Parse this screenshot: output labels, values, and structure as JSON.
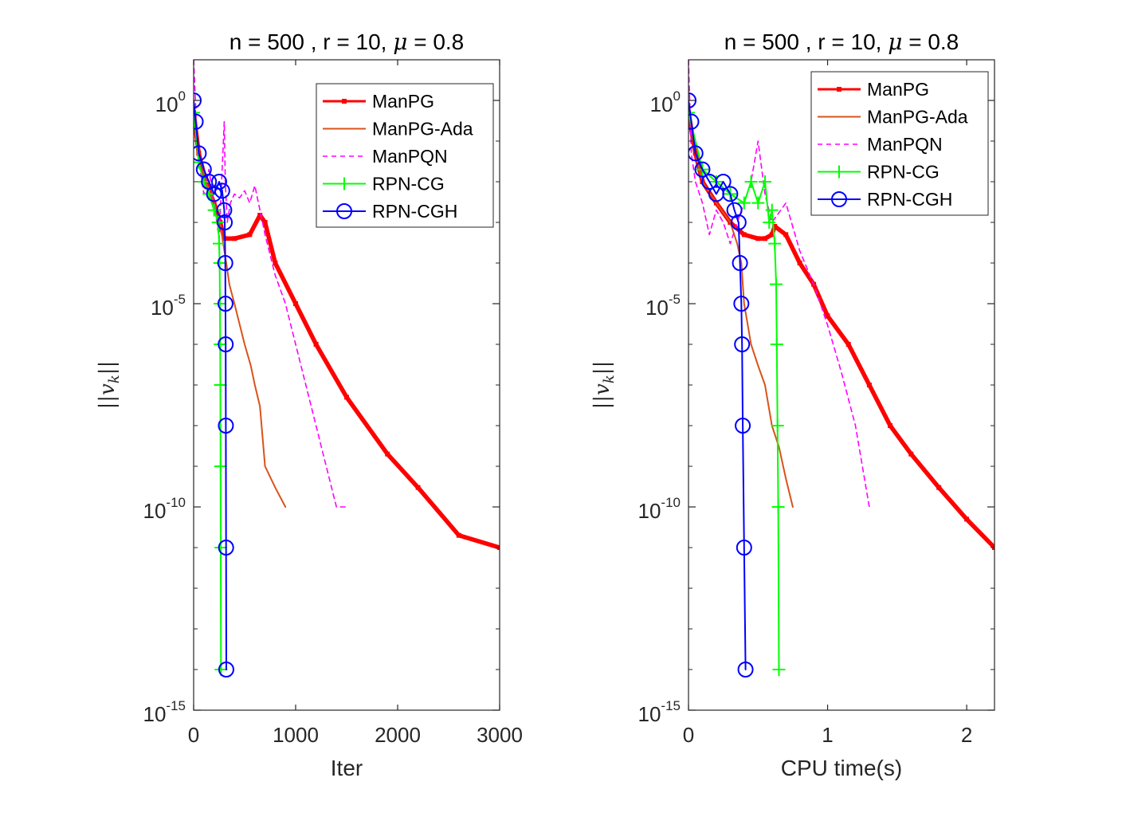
{
  "figure": {
    "common": {
      "title_prefix": "n = 500 , r = 10, ",
      "title_mu": "μ",
      "title_suffix": " = 0.8",
      "ylabel_left": "||",
      "ylabel_var": "v",
      "ylabel_sub": "k",
      "ylabel_right": "||"
    }
  },
  "chart_data": [
    {
      "type": "line",
      "xlabel": "Iter",
      "ylabel": "||v_k||",
      "yscale": "log",
      "xlim": [
        0,
        3000
      ],
      "ylim": [
        1e-15,
        10.0
      ],
      "xticks": [
        0,
        1000,
        2000,
        3000
      ],
      "xtick_labels": [
        "0",
        "1000",
        "2000",
        "3000"
      ],
      "yticks": [
        1e-15,
        1e-10,
        1e-05,
        1
      ],
      "ytick_labels": [
        {
          "base": "10",
          "exp": "-15"
        },
        {
          "base": "10",
          "exp": "-10"
        },
        {
          "base": "10",
          "exp": "-5"
        },
        {
          "base": "10",
          "exp": "0"
        }
      ],
      "legend_position": "top-right",
      "series": [
        {
          "name": "ManPG",
          "color": "#ff0000",
          "style": "thick-line-square-marker",
          "x": [
            0,
            50,
            120,
            200,
            260,
            300,
            400,
            550,
            650,
            700,
            800,
            1000,
            1200,
            1500,
            1900,
            2200,
            2600,
            3000
          ],
          "y": [
            0.5,
            0.05,
            0.01,
            0.003,
            0.001,
            0.0004,
            0.0004,
            0.0005,
            0.0015,
            0.001,
            0.0001,
            1e-05,
            1e-06,
            5e-08,
            2e-09,
            3e-10,
            2e-11,
            1e-11
          ]
        },
        {
          "name": "ManPG-Ada",
          "color": "#d95319",
          "style": "line",
          "x": [
            0,
            50,
            120,
            200,
            260,
            290,
            320,
            350,
            400,
            500,
            560,
            600,
            650,
            700,
            800,
            900
          ],
          "y": [
            0.5,
            0.05,
            0.01,
            0.003,
            0.001,
            0.0003,
            0.0001,
            3e-05,
            1e-05,
            1e-06,
            3e-07,
            1e-07,
            3e-08,
            1e-09,
            3e-10,
            1e-10
          ]
        },
        {
          "name": "ManPQN",
          "color": "#ff00ff",
          "style": "dashed",
          "x": [
            0,
            40,
            100,
            150,
            200,
            250,
            300,
            310,
            330,
            360,
            400,
            450,
            500,
            550,
            600,
            700,
            800,
            900,
            1000,
            1100,
            1200,
            1300,
            1400,
            1500
          ],
          "y": [
            10,
            0.05,
            0.005,
            0.02,
            0.003,
            0.0004,
            0.3,
            0.01,
            0.001,
            0.003,
            0.005,
            0.004,
            0.006,
            0.003,
            0.008,
            0.0005,
            5e-05,
            1e-05,
            1e-06,
            1e-07,
            1e-08,
            1e-09,
            1e-10,
            1e-10
          ]
        },
        {
          "name": "RPN-CG",
          "color": "#00ff00",
          "style": "line-plus-marker",
          "x": [
            0,
            50,
            100,
            150,
            200,
            240,
            250,
            255,
            258,
            260,
            262,
            264,
            266,
            268
          ],
          "y": [
            0.5,
            0.03,
            0.01,
            0.005,
            0.002,
            0.001,
            0.0003,
            0.0001,
            1e-05,
            1e-06,
            1e-07,
            1e-09,
            1e-11,
            1e-14
          ]
        },
        {
          "name": "RPN-CGH",
          "color": "#0000ff",
          "style": "line-circle-marker",
          "x": [
            0,
            20,
            50,
            100,
            150,
            200,
            250,
            280,
            300,
            305,
            310,
            312,
            314,
            316,
            318,
            320
          ],
          "y": [
            1,
            0.3,
            0.05,
            0.02,
            0.01,
            0.005,
            0.01,
            0.006,
            0.002,
            0.001,
            0.0001,
            1e-05,
            1e-06,
            1e-08,
            1e-11,
            1e-14
          ]
        }
      ]
    },
    {
      "type": "line",
      "xlabel": "CPU time(s)",
      "ylabel": "||v_k||",
      "yscale": "log",
      "xlim": [
        0,
        2.2
      ],
      "ylim": [
        1e-15,
        10.0
      ],
      "xticks": [
        0,
        1,
        2
      ],
      "xtick_labels": [
        "0",
        "1",
        "2"
      ],
      "yticks": [
        1e-15,
        1e-10,
        1e-05,
        1
      ],
      "ytick_labels": [
        {
          "base": "10",
          "exp": "-15"
        },
        {
          "base": "10",
          "exp": "-10"
        },
        {
          "base": "10",
          "exp": "-5"
        },
        {
          "base": "10",
          "exp": "0"
        }
      ],
      "legend_position": "top-right",
      "series": [
        {
          "name": "ManPG",
          "color": "#ff0000",
          "style": "thick-line-square-marker",
          "x": [
            0,
            0.05,
            0.1,
            0.2,
            0.3,
            0.4,
            0.5,
            0.55,
            0.6,
            0.62,
            0.7,
            0.8,
            0.9,
            1.0,
            1.15,
            1.3,
            1.45,
            1.6,
            1.8,
            2.0,
            2.2
          ],
          "y": [
            0.5,
            0.05,
            0.01,
            0.003,
            0.001,
            0.0005,
            0.0004,
            0.0004,
            0.0005,
            0.0008,
            0.0005,
            0.0001,
            3e-05,
            5e-06,
            1e-06,
            1e-07,
            1e-08,
            2e-09,
            3e-10,
            5e-11,
            1e-11
          ]
        },
        {
          "name": "ManPG-Ada",
          "color": "#d95319",
          "style": "line",
          "x": [
            0,
            0.05,
            0.1,
            0.2,
            0.3,
            0.35,
            0.38,
            0.4,
            0.45,
            0.5,
            0.55,
            0.6,
            0.65,
            0.7,
            0.75
          ],
          "y": [
            0.5,
            0.05,
            0.01,
            0.003,
            0.001,
            0.0003,
            0.0001,
            1e-05,
            1e-06,
            3e-07,
            1e-07,
            1e-08,
            3e-09,
            5e-10,
            1e-10
          ]
        },
        {
          "name": "ManPQN",
          "color": "#ff00ff",
          "style": "dashed",
          "x": [
            0,
            0.02,
            0.05,
            0.1,
            0.15,
            0.2,
            0.25,
            0.3,
            0.35,
            0.4,
            0.45,
            0.5,
            0.55,
            0.6,
            0.7,
            0.8,
            0.9,
            1.0,
            1.1,
            1.2,
            1.3
          ],
          "y": [
            10,
            0.05,
            0.01,
            0.003,
            0.0005,
            0.002,
            0.001,
            0.0003,
            0.001,
            0.003,
            0.01,
            0.1,
            0.005,
            0.001,
            0.003,
            0.0002,
            3e-05,
            3e-06,
            2e-07,
            1e-08,
            1e-10
          ]
        },
        {
          "name": "RPN-CG",
          "color": "#00ff00",
          "style": "line-plus-marker",
          "x": [
            0,
            0.1,
            0.2,
            0.3,
            0.4,
            0.45,
            0.5,
            0.55,
            0.58,
            0.6,
            0.62,
            0.63,
            0.635,
            0.64,
            0.645,
            0.65
          ],
          "y": [
            0.5,
            0.02,
            0.01,
            0.005,
            0.003,
            0.01,
            0.003,
            0.01,
            0.001,
            0.002,
            0.0003,
            3e-05,
            1e-06,
            1e-08,
            1e-10,
            1e-14
          ]
        },
        {
          "name": "RPN-CGH",
          "color": "#0000ff",
          "style": "line-circle-marker",
          "x": [
            0,
            0.02,
            0.05,
            0.1,
            0.15,
            0.2,
            0.25,
            0.3,
            0.33,
            0.36,
            0.37,
            0.38,
            0.385,
            0.39,
            0.4,
            0.41
          ],
          "y": [
            1,
            0.3,
            0.05,
            0.02,
            0.01,
            0.005,
            0.01,
            0.005,
            0.002,
            0.001,
            0.0001,
            1e-05,
            1e-06,
            1e-08,
            1e-11,
            1e-14
          ]
        }
      ]
    }
  ]
}
